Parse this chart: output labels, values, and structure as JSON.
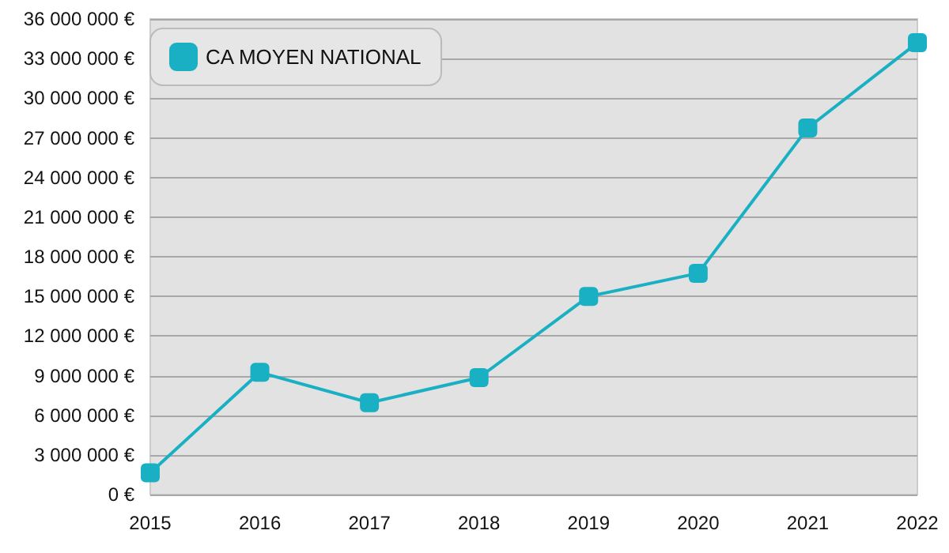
{
  "chart_data": {
    "type": "line",
    "categories": [
      "2015",
      "2016",
      "2017",
      "2018",
      "2019",
      "2020",
      "2021",
      "2022"
    ],
    "series": [
      {
        "name": "CA MOYEN NATIONAL",
        "color": "#1ab0c3",
        "values": [
          1650000,
          9250000,
          6950000,
          8850000,
          15000000,
          16750000,
          27750000,
          34200000
        ]
      }
    ],
    "ylim": [
      0,
      36000000
    ],
    "yticks": [
      {
        "value": 0,
        "label": "0 €"
      },
      {
        "value": 3000000,
        "label": "3 000 000 €"
      },
      {
        "value": 6000000,
        "label": "6 000 000 €"
      },
      {
        "value": 9000000,
        "label": "9 000 000 €"
      },
      {
        "value": 12000000,
        "label": "12 000 000 €"
      },
      {
        "value": 15000000,
        "label": "15 000 000 €"
      },
      {
        "value": 18000000,
        "label": "18 000 000 €"
      },
      {
        "value": 21000000,
        "label": "21 000 000 €"
      },
      {
        "value": 24000000,
        "label": "24 000 000 €"
      },
      {
        "value": 27000000,
        "label": "27 000 000 €"
      },
      {
        "value": 30000000,
        "label": "30 000 000 €"
      },
      {
        "value": 33000000,
        "label": "33 000 000 €"
      },
      {
        "value": 36000000,
        "label": "36 000 000 €"
      }
    ],
    "grid": "y",
    "legend": "top left",
    "marker": "square",
    "line_style": "solid"
  }
}
